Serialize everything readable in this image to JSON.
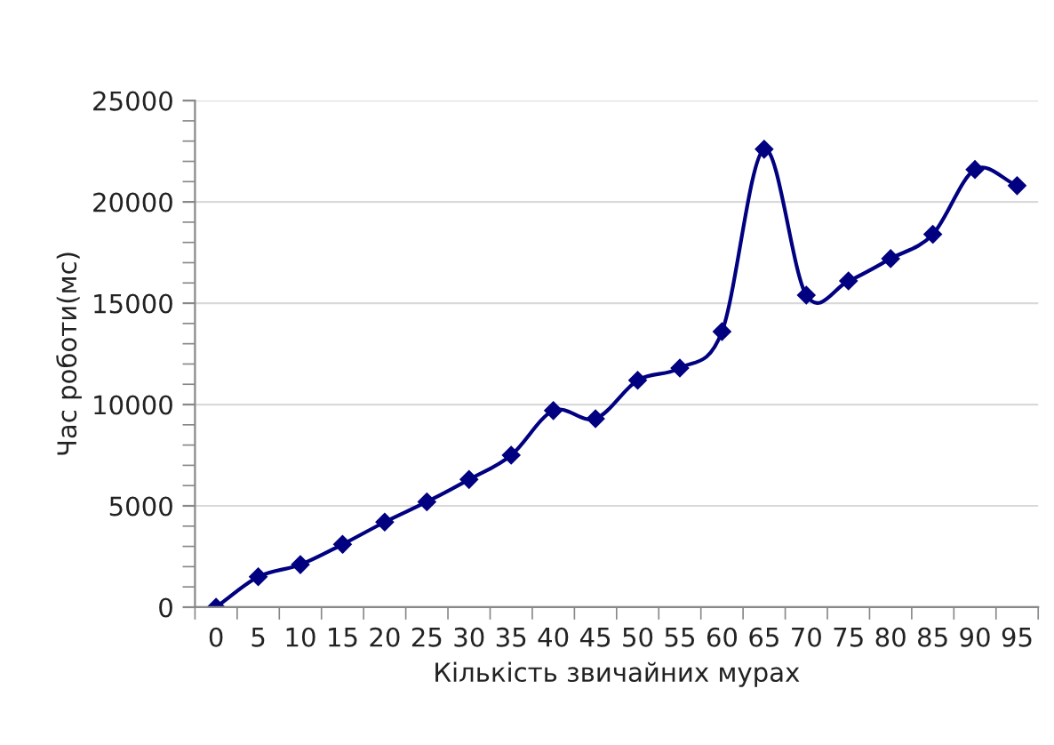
{
  "chart_data": {
    "type": "line",
    "xlabel": "Кількість звичайних мурах",
    "ylabel": "Час роботи(мс)",
    "categories": [
      "0",
      "5",
      "10",
      "15",
      "20",
      "25",
      "30",
      "35",
      "40",
      "45",
      "50",
      "55",
      "60",
      "65",
      "70",
      "75",
      "80",
      "85",
      "90",
      "95"
    ],
    "series": [
      {
        "color": "#000080",
        "values": [
          0,
          1500,
          2100,
          3100,
          4200,
          5200,
          6300,
          7500,
          9700,
          9300,
          11200,
          11800,
          13600,
          22600,
          15400,
          16100,
          17200,
          18400,
          21600,
          20800
        ]
      }
    ],
    "ylim": [
      0,
      25000
    ],
    "yticks": [
      0,
      5000,
      10000,
      15000,
      20000,
      25000
    ],
    "grid": "y",
    "legend": false,
    "marker": "diamond",
    "line_style": "solid"
  }
}
